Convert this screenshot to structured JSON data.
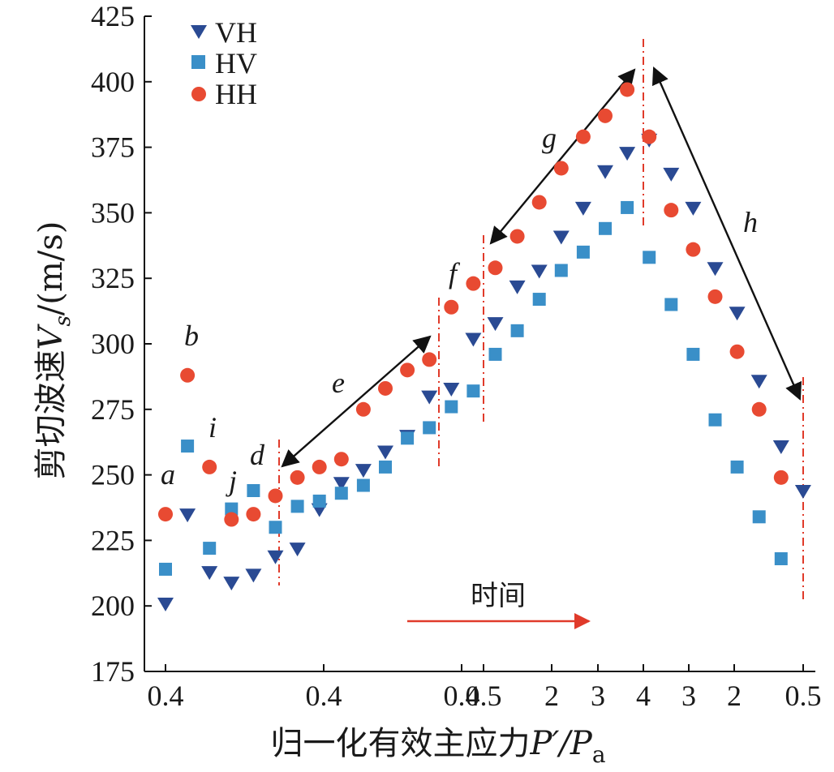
{
  "chart_data": {
    "type": "scatter",
    "ylabel": "剪切波速V_s/(m/s)",
    "ylabel_main": "剪切波速",
    "ylabel_var": "V",
    "ylabel_sub": "s",
    "ylabel_unit": "/(m/s)",
    "xlabel": "归一化有效主应力P′/P_a",
    "xlabel_main": "归一化有效主应力",
    "xlabel_var": "P′/P",
    "xlabel_sub": "a",
    "ylim": [
      175,
      425
    ],
    "yticks": [
      175,
      200,
      225,
      250,
      275,
      300,
      325,
      350,
      375,
      400,
      425
    ],
    "xticks": [
      "0.4",
      "0.4",
      "0.4",
      "0.5",
      "2",
      "3",
      "4",
      "3",
      "2",
      "0.5"
    ],
    "grid": false,
    "legend_position": "top-left",
    "series": [
      {
        "name": "VH",
        "marker": "triangle-down",
        "color": "#2a4a93",
        "values": [
          201,
          235,
          213,
          209,
          212,
          219,
          222,
          237,
          247,
          252,
          259,
          265,
          280,
          283,
          302,
          308,
          322,
          328,
          341,
          352,
          366,
          373,
          378,
          365,
          352,
          329,
          312,
          286,
          261,
          244
        ]
      },
      {
        "name": "HV",
        "marker": "square",
        "color": "#3a8fc8",
        "values": [
          214,
          261,
          222,
          237,
          244,
          230,
          238,
          240,
          243,
          246,
          253,
          264,
          268,
          276,
          282,
          296,
          305,
          317,
          328,
          335,
          344,
          352,
          333,
          315,
          296,
          271,
          253,
          234,
          218
        ]
      },
      {
        "name": "HH",
        "marker": "circle",
        "color": "#e84a32",
        "values": [
          235,
          288,
          253,
          233,
          235,
          242,
          249,
          253,
          256,
          275,
          283,
          290,
          294,
          314,
          323,
          329,
          341,
          354,
          367,
          379,
          387,
          397,
          379,
          351,
          336,
          318,
          297,
          275,
          249
        ]
      }
    ],
    "annotations": [
      "a",
      "b",
      "i",
      "j",
      "d",
      "e",
      "f",
      "g",
      "h"
    ],
    "time_label": "时间"
  }
}
